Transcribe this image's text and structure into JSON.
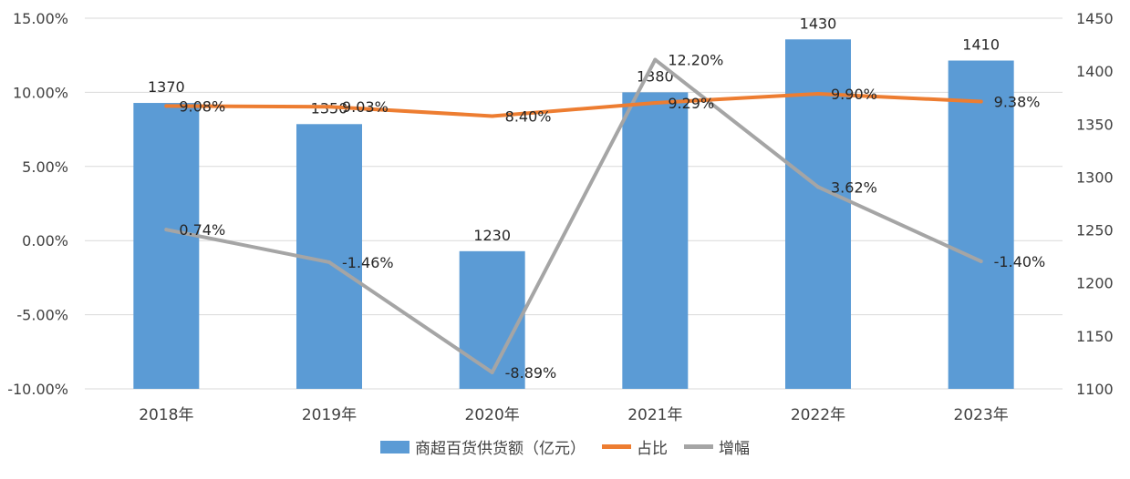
{
  "chart_data": {
    "type": "bar",
    "categories": [
      "2018年",
      "2019年",
      "2020年",
      "2021年",
      "2022年",
      "2023年"
    ],
    "series": [
      {
        "name": "商超百货供货额（亿元）",
        "type": "bar",
        "axis": "right",
        "values": [
          1370,
          1350,
          1230,
          1380,
          1430,
          1410
        ],
        "labels": [
          "1370",
          "1350",
          "1230",
          "1380",
          "1430",
          "1410"
        ],
        "color": "#5b9bd5"
      },
      {
        "name": "占比",
        "type": "line",
        "axis": "left",
        "values": [
          9.08,
          9.03,
          8.4,
          9.29,
          9.9,
          9.38
        ],
        "labels": [
          "9.08%",
          "9.03%",
          "8.40%",
          "9.29%",
          "9.90%",
          "9.38%"
        ],
        "color": "#ed7d31"
      },
      {
        "name": "增幅",
        "type": "line",
        "axis": "left",
        "values": [
          0.74,
          -1.46,
          -8.89,
          12.2,
          3.62,
          -1.4
        ],
        "labels": [
          "0.74%",
          "-1.46%",
          "-8.89%",
          "12.20%",
          "3.62%",
          "-1.40%"
        ],
        "color": "#a5a5a5"
      }
    ],
    "left_axis": {
      "ylim": [
        -10,
        15
      ],
      "ticks": [
        15,
        10,
        5,
        0,
        -5,
        -10
      ],
      "tick_labels": [
        "15.00%",
        "10.00%",
        "5.00%",
        "0.00%",
        "-5.00%",
        "-10.00%"
      ]
    },
    "right_axis": {
      "ylim": [
        1100,
        1450
      ],
      "ticks": [
        1450,
        1400,
        1350,
        1300,
        1250,
        1200,
        1150,
        1100
      ],
      "tick_labels": [
        "1450",
        "1400",
        "1350",
        "1300",
        "1250",
        "1200",
        "1150",
        "1100"
      ]
    },
    "grid": true,
    "legend_position": "bottom",
    "title": "",
    "xlabel": "",
    "ylabel": ""
  }
}
